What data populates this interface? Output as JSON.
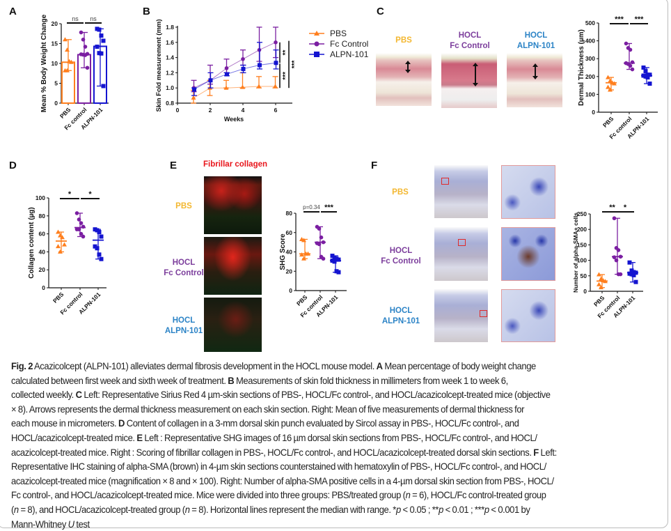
{
  "panel_labels": [
    "A",
    "B",
    "C",
    "D",
    "E",
    "F"
  ],
  "colors": {
    "PBS": "#ff7f1e",
    "Fc": "#7b1fa2",
    "ALPN": "#1414d0",
    "label_PBS": "#f3b730",
    "label_HOCL_Fc": "#7c3e9c",
    "label_HOCL_ALPN": "#2b83c6"
  },
  "group_labels": {
    "pbs": "PBS",
    "hocl": "HOCL",
    "fc_control": "Fc Control",
    "alpn": "ALPN-101"
  },
  "panel_e_title": "Fibrillar collagen",
  "chart_data": [
    {
      "id": "A",
      "type": "bar",
      "ylabel": "Mean % Body Weight Change",
      "categories": [
        "PBS",
        "Fc control",
        "ALPN-101"
      ],
      "ylim": [
        0,
        20
      ],
      "yticks": [
        "0",
        "5",
        "10",
        "15",
        "20"
      ],
      "values": [
        10.3,
        12.2,
        14.3
      ],
      "points": [
        [
          16,
          13.4,
          10.5,
          10.3,
          8.2,
          8.2
        ],
        [
          17.8,
          16,
          14.2,
          12.4,
          12.3,
          12.2,
          12.1,
          8.9
        ],
        [
          18.7,
          18.5,
          17,
          15.7,
          14.2,
          12.6,
          12.5,
          4.3
        ]
      ],
      "range": [
        [
          8.2,
          16
        ],
        [
          8.9,
          17.8
        ],
        [
          4.3,
          18.7
        ]
      ],
      "significance": [
        {
          "from": 0,
          "to": 1,
          "label": "ns"
        },
        {
          "from": 1,
          "to": 2,
          "label": "ns"
        }
      ]
    },
    {
      "id": "B",
      "type": "line",
      "xlabel": "Weeks",
      "ylabel": "Skin Fold measurement (mm)",
      "xlim": [
        0,
        6
      ],
      "ylim": [
        0.8,
        1.8
      ],
      "xticks": [
        "0",
        "2",
        "4",
        "6"
      ],
      "yticks": [
        "0.8",
        "1.0",
        "1.2",
        "1.4",
        "1.6",
        "1.8"
      ],
      "x": [
        1,
        2,
        3,
        4,
        5,
        6
      ],
      "series": [
        {
          "name": "PBS",
          "values": [
            0.87,
            1.0,
            1.0,
            1.01,
            1.02,
            1.02
          ],
          "upper": [
            0.97,
            1.1,
            1.1,
            1.2,
            1.15,
            1.15
          ],
          "lower": [
            0.8,
            0.9,
            1.0,
            1.0,
            1.0,
            1.0
          ]
        },
        {
          "name": "Fc Control",
          "values": [
            1.0,
            1.1,
            1.26,
            1.38,
            1.5,
            1.6
          ],
          "upper": [
            1.1,
            1.3,
            1.38,
            1.5,
            1.8,
            1.8
          ],
          "lower": [
            0.95,
            1.05,
            1.2,
            1.3,
            1.35,
            1.4
          ]
        },
        {
          "name": "ALPN-101",
          "values": [
            0.98,
            1.1,
            1.18,
            1.25,
            1.3,
            1.33
          ],
          "upper": [
            1.0,
            1.2,
            1.2,
            1.3,
            1.6,
            1.5
          ],
          "lower": [
            0.9,
            1.0,
            1.16,
            1.2,
            1.25,
            1.25
          ]
        }
      ],
      "significance": [
        {
          "label": "**",
          "between": "Fc Control vs ALPN-101"
        },
        {
          "label": "***",
          "between": "ALPN-101 vs PBS"
        },
        {
          "label": "***",
          "between": "Fc Control vs PBS"
        }
      ],
      "legend": "right"
    },
    {
      "id": "C",
      "type": "scatter",
      "ylabel": "Dermal Thickness (µm)",
      "categories": [
        "PBS",
        "Fc control",
        "ALPN-101"
      ],
      "ylim": [
        0,
        500
      ],
      "yticks": [
        "0",
        "100",
        "200",
        "300",
        "400",
        "500"
      ],
      "points": [
        [
          195,
          175,
          165,
          160,
          140,
          125
        ],
        [
          385,
          360,
          350,
          280,
          275,
          270,
          260,
          240
        ],
        [
          250,
          230,
          210,
          210,
          205,
          200,
          195,
          160
        ]
      ],
      "median": [
        165,
        275,
        205
      ],
      "significance": [
        {
          "from": 0,
          "to": 1,
          "label": "***"
        },
        {
          "from": 1,
          "to": 2,
          "label": "***"
        }
      ]
    },
    {
      "id": "D",
      "type": "scatter",
      "ylabel": "Collagen content (µg)",
      "categories": [
        "PBS",
        "Fc control",
        "ALPN-101"
      ],
      "ylim": [
        0,
        100
      ],
      "yticks": [
        "0",
        "20",
        "40",
        "60",
        "80",
        "100"
      ],
      "points": [
        [
          62,
          58,
          56,
          48,
          46,
          40
        ],
        [
          83,
          76,
          72,
          68,
          65,
          65,
          60,
          57
        ],
        [
          65,
          64,
          62,
          57,
          46,
          44,
          37,
          32
        ]
      ],
      "median": [
        52,
        67,
        53
      ],
      "significance": [
        {
          "from": 0,
          "to": 1,
          "label": "*"
        },
        {
          "from": 1,
          "to": 2,
          "label": "*"
        }
      ]
    },
    {
      "id": "E",
      "type": "scatter",
      "ylabel": "SHG Score",
      "categories": [
        "PBS",
        "Fc control",
        "ALPN-101"
      ],
      "ylim": [
        0,
        80
      ],
      "yticks": [
        "0",
        "20",
        "40",
        "60",
        "80"
      ],
      "points": [
        [
          53,
          52,
          38,
          38,
          37,
          33
        ],
        [
          66,
          64,
          55,
          50,
          49,
          48,
          35,
          33
        ],
        [
          36,
          34,
          33,
          32,
          31,
          30,
          20,
          19
        ]
      ],
      "median": [
        38,
        50,
        31
      ],
      "significance": [
        {
          "from": 0,
          "to": 1,
          "label": "p=0.34"
        },
        {
          "from": 1,
          "to": 2,
          "label": "***"
        }
      ]
    },
    {
      "id": "F",
      "type": "scatter",
      "ylabel": "Number of alpha-SMA+ cells",
      "categories": [
        "PBS",
        "Fc control",
        "ALPN-101"
      ],
      "ylim": [
        0,
        250
      ],
      "yticks": [
        "0",
        "50",
        "100",
        "150",
        "200",
        "250"
      ],
      "points": [
        [
          54,
          40,
          35,
          32,
          22,
          12
        ],
        [
          236,
          140,
          133,
          112,
          110,
          100,
          55,
          55
        ],
        [
          93,
          67,
          62,
          60,
          57,
          55,
          52,
          30
        ]
      ],
      "median": [
        33,
        112,
        60
      ],
      "significance": [
        {
          "from": 0,
          "to": 2,
          "label": "**",
          "pos": 0.33
        },
        {
          "from": 0,
          "to": 2,
          "label": "*",
          "pos": 0.75
        }
      ]
    }
  ],
  "caption_lines": [
    [
      {
        "t": "Fig. 2",
        "s": "b"
      },
      {
        "t": "  Acazicolcept (ALPN-101) alleviates dermal fibrosis development in the HOCL mouse model. "
      },
      {
        "t": "A",
        "s": "b"
      },
      {
        "t": " Mean percentage of body weight change"
      }
    ],
    [
      {
        "t": "calculated between first week and sixth week of treatment. "
      },
      {
        "t": "B",
        "s": "b"
      },
      {
        "t": " Measurements of skin fold thickness in millimeters from week 1 to week 6,"
      }
    ],
    [
      {
        "t": "collected weekly. "
      },
      {
        "t": "C",
        "s": "b"
      },
      {
        "t": " Left: Representative Sirius Red 4 µm-skin sections of PBS-, HOCL/Fc control-, and HOCL/acazicolcept-treated mice (objective"
      }
    ],
    [
      {
        "t": "× 8). Arrows represents the dermal thickness measurement on each skin section. Right: Mean of five measurements of dermal thickness for"
      }
    ],
    [
      {
        "t": "each mouse in micrometers. "
      },
      {
        "t": "D",
        "s": "b"
      },
      {
        "t": " Content of collagen in a 3-mm dorsal skin punch evaluated by Sircol assay in PBS-, HOCL/Fc control-, and"
      }
    ],
    [
      {
        "t": "HOCL/acazicolcept-treated mice. "
      },
      {
        "t": "E",
        "s": "b"
      },
      {
        "t": " Left : Representative SHG images of 16 µm dorsal skin sections from PBS-, HOCL/Fc control-, and HOCL/"
      }
    ],
    [
      {
        "t": "acazicolcept-treated mice. Right : Scoring of fibrillar collagen in PBS-, HOCL/Fc control-, and HOCL/acazicolcept-treated dorsal skin sections. "
      },
      {
        "t": "F",
        "s": "b"
      },
      {
        "t": " Left:"
      }
    ],
    [
      {
        "t": "Representative IHC staining of alpha-SMA (brown) in 4-µm skin sections counterstained with hematoxylin of PBS-, HOCL/Fc control-, and HOCL/"
      }
    ],
    [
      {
        "t": "acazicolcept-treated mice (magnification × 8 and × 100). Right: Number of alpha-SMA positive cells in a 4-µm dorsal skin section from PBS-, HOCL/"
      }
    ],
    [
      {
        "t": "Fc control-, and HOCL/acazicolcept-treated mice. Mice were divided into three groups: PBS/treated group ("
      },
      {
        "t": "n",
        "s": "i"
      },
      {
        "t": " = 6), HOCL/Fc control-treated group"
      }
    ],
    [
      {
        "t": "("
      },
      {
        "t": "n",
        "s": "i"
      },
      {
        "t": " = 8), and HOCL/acazicolcept-treated group ("
      },
      {
        "t": "n",
        "s": "i"
      },
      {
        "t": " = 8). Horizontal lines represent the median with range. *"
      },
      {
        "t": "p",
        "s": "i"
      },
      {
        "t": " < 0.05 ; **"
      },
      {
        "t": "p",
        "s": "i"
      },
      {
        "t": " < 0.01 ; ***"
      },
      {
        "t": "p",
        "s": "i"
      },
      {
        "t": " < 0.001 by"
      }
    ],
    [
      {
        "t": "Mann-Whitney "
      },
      {
        "t": "U",
        "s": "i"
      },
      {
        "t": " test"
      }
    ]
  ]
}
